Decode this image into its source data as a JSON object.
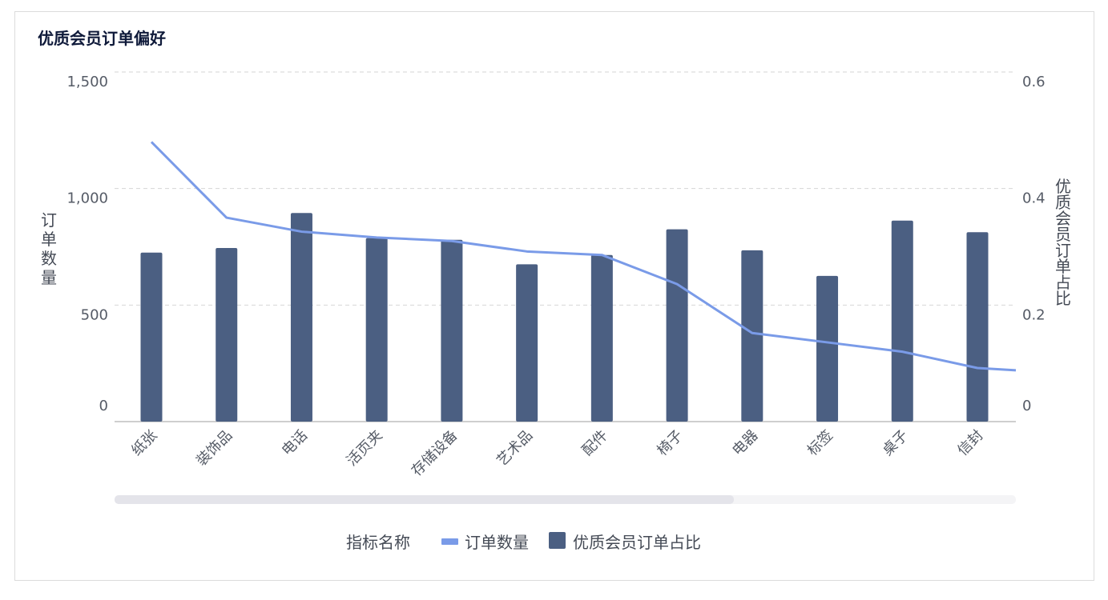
{
  "chart_data": {
    "type": "bar+line",
    "title": "优质会员订单偏好",
    "categories": [
      "纸张",
      "装饰品",
      "电话",
      "活页夹",
      "存储设备",
      "艺术品",
      "配件",
      "椅子",
      "电器",
      "标签",
      "桌子",
      "信封"
    ],
    "series": [
      {
        "name": "订单数量",
        "type": "line",
        "axis": "left",
        "color": "#7a9be8",
        "values": [
          1200,
          875,
          815,
          790,
          775,
          730,
          715,
          590,
          380,
          340,
          300,
          230
        ]
      },
      {
        "name": "优质会员订单占比",
        "type": "bar",
        "axis": "right",
        "color": "#4b5f82",
        "values": [
          0.29,
          0.298,
          0.358,
          0.315,
          0.312,
          0.27,
          0.286,
          0.33,
          0.294,
          0.25,
          0.345,
          0.325
        ]
      }
    ],
    "y_left": {
      "label": "订单数量",
      "ticks": [
        "0",
        "500",
        "1,000",
        "1,500"
      ],
      "range": [
        0,
        1500
      ]
    },
    "y_right": {
      "label": "优质会员订单占比",
      "ticks": [
        "0",
        "0.2",
        "0.4",
        "0.6"
      ],
      "range": [
        0,
        0.6
      ]
    },
    "legend": {
      "title": "指标名称",
      "position": "bottom-center"
    },
    "grid": true
  }
}
